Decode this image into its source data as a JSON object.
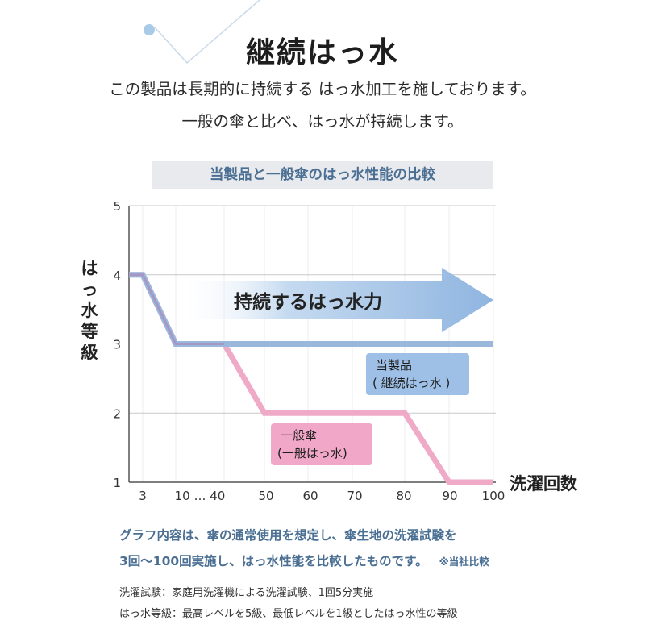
{
  "page": {
    "title": "継続はっ水",
    "description_line1": "この製品は長期的に持続する はっ水加工を施しております。",
    "description_line2": "一般の傘と比べ、はっ水が持続します。"
  },
  "chart_data": {
    "type": "line",
    "title": "当製品と一般傘のはっ水性能の比較",
    "xlabel": "洗濯回数",
    "ylabel": "はっ水等級",
    "x_ticks": [
      "3",
      "10 … 40",
      "50",
      "60",
      "70",
      "80",
      "90",
      "100"
    ],
    "y_ticks": [
      "1",
      "2",
      "3",
      "4",
      "5"
    ],
    "ylim": [
      1,
      5
    ],
    "grid": true,
    "arrow_annotation": "持続するはっ水力",
    "series": [
      {
        "name_line1": "当製品",
        "name_line2": "( 継続はっ水 )",
        "color": "#9ab8dc",
        "points": [
          [
            0,
            4
          ],
          [
            3,
            4
          ],
          [
            10,
            3
          ],
          [
            100,
            3
          ]
        ]
      },
      {
        "name_line1": "一般傘",
        "name_line2": "(一般はっ水)",
        "color": "#efaac8",
        "points": [
          [
            0,
            4
          ],
          [
            3,
            4
          ],
          [
            10,
            3
          ],
          [
            40,
            3
          ],
          [
            50,
            2
          ],
          [
            80,
            2
          ],
          [
            90,
            1
          ],
          [
            100,
            1
          ]
        ]
      }
    ]
  },
  "notes": {
    "line1": "グラフ内容は、傘の通常使用を想定し、傘生地の洗濯試験を",
    "line2": "3回〜100回実施し、はっ水性能を比較したものです。",
    "line2_ref": "※当社比較",
    "footnote1": "洗濯試験：家庭用洗濯機による洗濯試験、1回5分実施",
    "footnote2": "はっ水等級：最高レベルを5級、最低レベルを1級としたはっ水性の等級"
  }
}
